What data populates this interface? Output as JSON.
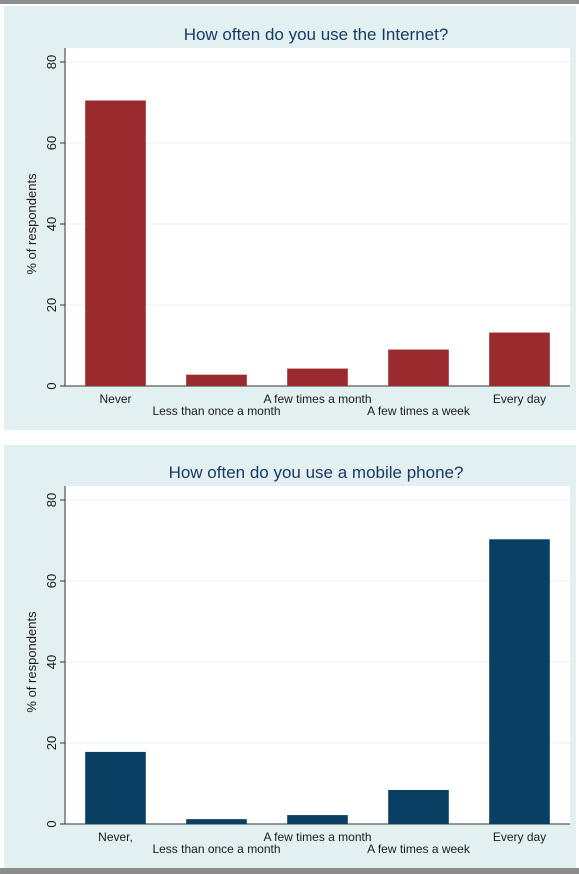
{
  "chart_data": [
    {
      "type": "bar",
      "title": "How often do you use the Internet?",
      "ylabel": "% of respondents",
      "xlabel": "",
      "ylim": [
        0,
        80
      ],
      "yticks": [
        "0",
        "20",
        "40",
        "60",
        "80"
      ],
      "categories": [
        "Never",
        "Less than once a month",
        "A few times a month",
        "A few times a week",
        "Every day"
      ],
      "values": [
        70.5,
        2.8,
        4.3,
        9.0,
        13.2
      ],
      "bar_color": "#9b2a2f",
      "grid": true
    },
    {
      "type": "bar",
      "title": "How often do you use a mobile phone?",
      "ylabel": "% of respondents",
      "xlabel": "",
      "ylim": [
        0,
        80
      ],
      "yticks": [
        "0",
        "20",
        "40",
        "60",
        "80"
      ],
      "categories": [
        "Never,",
        "Less than once a month",
        "A few times a month",
        "A few times a week",
        "Every day"
      ],
      "values": [
        17.8,
        1.2,
        2.2,
        8.4,
        70.3
      ],
      "bar_color": "#093f63",
      "grid": true
    }
  ]
}
